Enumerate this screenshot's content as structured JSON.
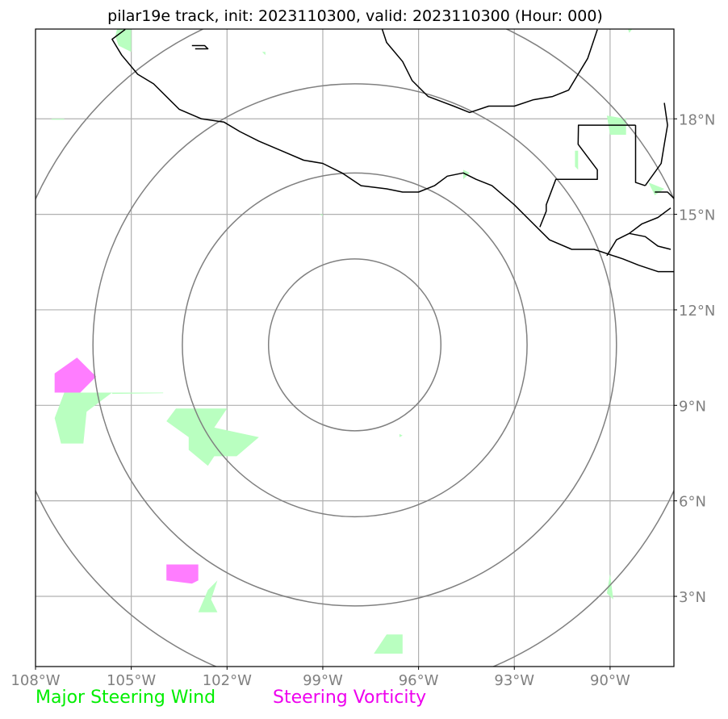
{
  "title": "pilar19e track, init: 2023110300, valid: 2023110300 (Hour: 000)",
  "map": {
    "lon_range": [
      -108,
      -88
    ],
    "lat_range": [
      1,
      21
    ],
    "lon_ticks": [
      {
        "value": -108,
        "label": "108°W"
      },
      {
        "value": -105,
        "label": "105°W"
      },
      {
        "value": -102,
        "label": "102°W"
      },
      {
        "value": -99,
        "label": "99°W"
      },
      {
        "value": -96,
        "label": "96°W"
      },
      {
        "value": -93,
        "label": "93°W"
      },
      {
        "value": -90,
        "label": "90°W"
      }
    ],
    "lat_ticks": [
      {
        "value": 3,
        "label": "3°N"
      },
      {
        "value": 6,
        "label": "6°N"
      },
      {
        "value": 9,
        "label": "9°N"
      },
      {
        "value": 12,
        "label": "12°N"
      },
      {
        "value": 15,
        "label": "15°N"
      },
      {
        "value": 18,
        "label": "18°N"
      }
    ],
    "storm_center": {
      "lon": -98.0,
      "lat": 10.9
    },
    "range_rings_deg": [
      2.7,
      5.4,
      8.2,
      11.0
    ],
    "colors": {
      "grid": "#b0b0b0",
      "rings": "#808080",
      "coast": "#000000",
      "wind": "#b9ffc0",
      "vorticity": "#ff66ff"
    }
  },
  "legend": {
    "wind_label": "Major Steering Wind",
    "wind_color": "#00ee00",
    "vorticity_label": "Steering Vorticity",
    "vorticity_color": "#ee00ee"
  }
}
